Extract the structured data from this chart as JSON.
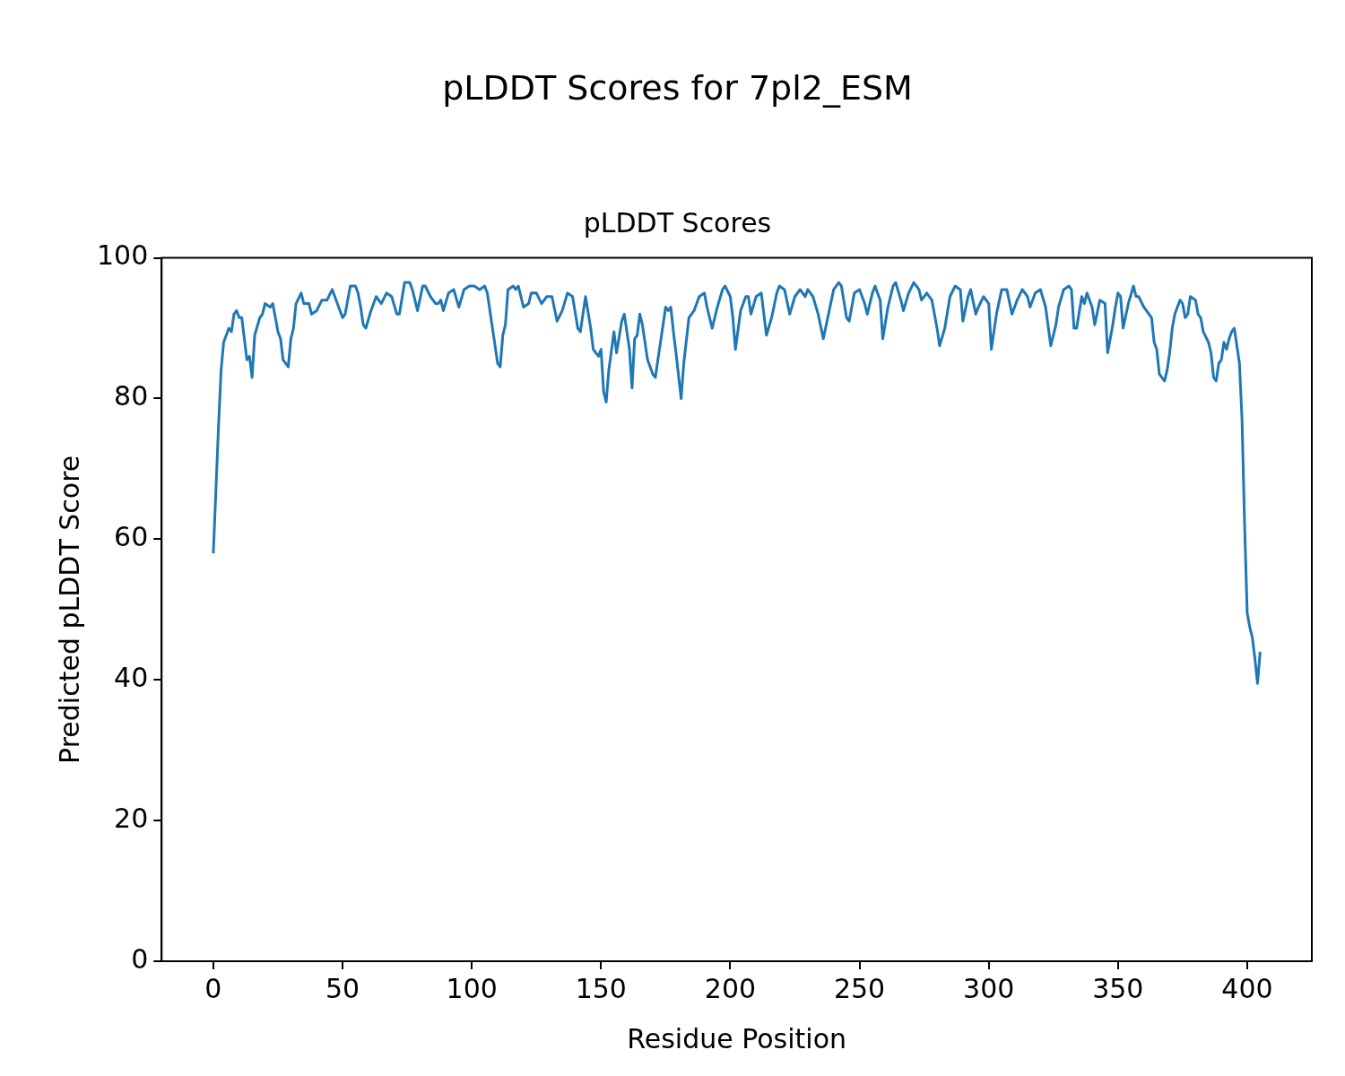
{
  "chart_data": {
    "type": "line",
    "title": "pLDDT Scores for 7pl2_ESM",
    "subtitle": "pLDDT Scores",
    "xlabel": "Residue Position",
    "ylabel": "Predicted pLDDT Score",
    "xlim": [
      -20,
      425
    ],
    "xticks": [
      0,
      50,
      100,
      150,
      200,
      250,
      300,
      350,
      400
    ],
    "ylim": [
      0,
      100
    ],
    "yticks": [
      0,
      20,
      40,
      60,
      80,
      100
    ],
    "grid": false,
    "legend": false,
    "series": [
      {
        "color": "#1f77b4",
        "x": [
          0,
          2,
          3,
          4,
          6,
          7,
          8,
          9,
          10,
          11,
          13,
          14,
          15,
          16,
          18,
          19,
          20,
          22,
          23,
          25,
          26,
          27,
          29,
          30,
          31,
          32,
          34,
          35,
          37,
          38,
          40,
          42,
          44,
          46,
          48,
          50,
          51,
          53,
          55,
          56,
          57,
          58,
          59,
          61,
          63,
          65,
          67,
          69,
          71,
          72,
          74,
          76,
          77,
          79,
          81,
          82,
          84,
          86,
          87,
          88,
          89,
          91,
          93,
          95,
          97,
          99,
          101,
          103,
          105,
          106,
          108,
          110,
          111,
          112,
          113,
          114,
          116,
          117,
          118,
          120,
          122,
          123,
          125,
          127,
          129,
          131,
          133,
          135,
          137,
          139,
          141,
          142,
          144,
          146,
          147,
          149,
          150,
          151,
          152,
          153,
          155,
          156,
          158,
          159,
          161,
          162,
          163,
          164,
          165,
          166,
          168,
          170,
          171,
          173,
          175,
          176,
          177,
          178,
          179,
          181,
          182,
          184,
          186,
          188,
          190,
          191,
          193,
          195,
          197,
          198,
          200,
          201,
          202,
          204,
          206,
          207,
          208,
          210,
          212,
          214,
          216,
          218,
          219,
          221,
          223,
          225,
          227,
          229,
          230,
          232,
          234,
          236,
          238,
          240,
          242,
          243,
          245,
          246,
          248,
          250,
          252,
          253,
          255,
          256,
          258,
          259,
          261,
          263,
          264,
          266,
          267,
          269,
          271,
          273,
          274,
          276,
          278,
          280,
          281,
          283,
          285,
          287,
          289,
          290,
          292,
          293,
          295,
          296,
          298,
          300,
          301,
          303,
          305,
          307,
          309,
          311,
          313,
          315,
          316,
          318,
          320,
          322,
          324,
          326,
          327,
          329,
          331,
          332,
          333,
          334,
          336,
          337,
          338,
          340,
          341,
          343,
          345,
          346,
          348,
          349,
          350,
          351,
          352,
          354,
          356,
          357,
          358,
          360,
          361,
          363,
          364,
          365,
          366,
          368,
          369,
          370,
          371,
          372,
          374,
          375,
          376,
          377,
          378,
          380,
          381,
          382,
          383,
          385,
          386,
          387,
          388,
          389,
          390,
          391,
          392,
          393,
          394,
          395,
          397,
          398,
          399,
          400,
          401,
          402,
          403,
          404,
          405
        ],
        "values": [
          58,
          76,
          84,
          88,
          90,
          89.5,
          92,
          92.5,
          91.5,
          91.5,
          85.5,
          86,
          83,
          89,
          91.5,
          92,
          93.5,
          93,
          93.5,
          89.5,
          88.5,
          85.5,
          84.5,
          88.5,
          90,
          93.5,
          95,
          93.5,
          93.5,
          92,
          92.5,
          94,
          94,
          95.5,
          93.5,
          91.5,
          92,
          96,
          96,
          95,
          93,
          90.5,
          90,
          92.5,
          94.5,
          93.5,
          95,
          94.5,
          92,
          92,
          96.5,
          96.5,
          95.5,
          92.5,
          96,
          96,
          94.5,
          93.5,
          93.5,
          94,
          92.5,
          95,
          95.5,
          93,
          95.5,
          96,
          96,
          95.5,
          96,
          95,
          90,
          85,
          84.5,
          89,
          90.5,
          95.5,
          96,
          95.5,
          96,
          93,
          93.5,
          95,
          95,
          93.5,
          94.5,
          94.5,
          91,
          92.5,
          95,
          94.5,
          90,
          89.5,
          94.5,
          90,
          87,
          86,
          87,
          81,
          79.5,
          84,
          89.5,
          86.5,
          91,
          92,
          87,
          81.5,
          88.5,
          89,
          92,
          90.5,
          85.5,
          83.5,
          83,
          88,
          93,
          92.5,
          93,
          89.5,
          86.5,
          80,
          85,
          91.5,
          92.5,
          94.5,
          95,
          93,
          90,
          93,
          95.5,
          96,
          94.5,
          91.5,
          87,
          92.5,
          94.5,
          94.5,
          92,
          94.5,
          95,
          89,
          91.5,
          95,
          96,
          95.5,
          92,
          94.5,
          95.5,
          94.5,
          95.5,
          94.5,
          92,
          88.5,
          92,
          95.5,
          96.5,
          96,
          91.5,
          91,
          95,
          95.5,
          93.5,
          92,
          95,
          96,
          94,
          88.5,
          93,
          96,
          96.5,
          94,
          92.5,
          95,
          96.5,
          95.5,
          94,
          95,
          94,
          90,
          87.5,
          90,
          94.5,
          96,
          95.5,
          91,
          94.5,
          95.5,
          92,
          93,
          94.5,
          93.5,
          87,
          92,
          95.5,
          95.5,
          92,
          94,
          95.5,
          94.5,
          93,
          95,
          95.5,
          93,
          87.5,
          90.5,
          93,
          95.5,
          96,
          95.5,
          90,
          90,
          94.5,
          93.5,
          95,
          93,
          90.5,
          94,
          93.5,
          86.5,
          90.5,
          93,
          95,
          94.5,
          90,
          93.5,
          96,
          94.5,
          94.5,
          93,
          92.5,
          91.5,
          88,
          87,
          83.5,
          82.5,
          84,
          86.5,
          90,
          92,
          94,
          93.5,
          91.5,
          92,
          94.5,
          94,
          92,
          91.5,
          89.5,
          88,
          86.5,
          83,
          82.5,
          85,
          85.5,
          88,
          87,
          88.5,
          89.5,
          90,
          85,
          77,
          62,
          49.5,
          47.5,
          46,
          43,
          39.5,
          44
        ]
      }
    ]
  }
}
